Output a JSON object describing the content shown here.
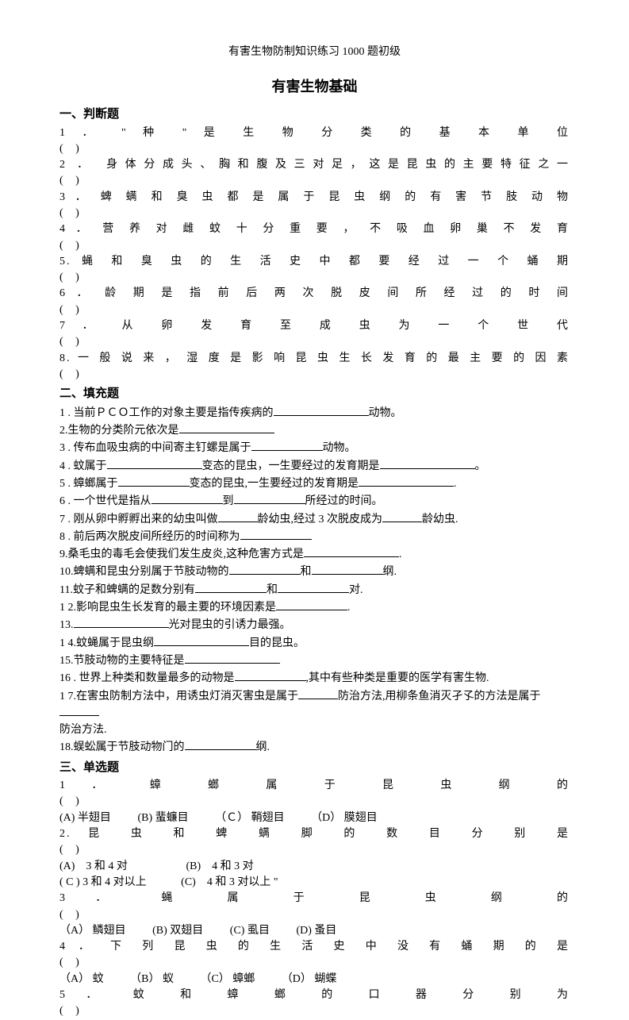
{
  "header": "有害生物防制知识练习 1000 题初级",
  "title": "有害生物基础",
  "sections": {
    "s1": {
      "heading": "一、判断题",
      "q1": "1 ． \" 种 \" 是 生 物 分 类 的 基 本 单 位",
      "q2": "2 ． 身体分成头、胸和腹及三对足，这是昆虫的主要特征之一",
      "q3": "3 ． 蜱 螨 和 臭 虫 都 是 属 于 昆 虫 纲 的 有 害 节 肢 动 物",
      "q4": "4 ． 营 养 对 雌 蚊 十 分 重 要 ， 不 吸 血 卵 巢 不 发 育",
      "q5": "5. 蝇 和 臭 虫 的 生 活 史 中 都 要 经 过 一 个 蛹 期",
      "q6": "6 ． 龄 期 是 指 前 后 两 次 脱 皮 间 所 经 过 的 时 间",
      "q7": "7 ． 从 卵 发 育 至 成 虫 为 一 个 世 代",
      "q8": "8. 一 般 说 来 ， 湿 度 是 影 响 昆 虫 生 长 发 育 的 最 主 要 的 因 素",
      "paren": "(    )"
    },
    "s2": {
      "heading": "二、填充题",
      "q1a": "1 . 当前ＰＣＯ工作的对象主要是指传疾病的",
      "q1b": "动物。",
      "q2a": "2.生物的分类阶元依次是",
      "q3a": "3 . 传布血吸虫病的中间寄主钉螺是属于",
      "q3b": "动物。",
      "q4a": "4 . 蚊属于",
      "q4b": "变态的昆虫，一生要经过的发育期是",
      "q4c": "。",
      "q5a": "5 . 蟑螂属于",
      "q5b": "变态的昆虫,一生要经过的发育期是",
      "q5c": ".",
      "q6a": "6 . 一个世代是指从",
      "q6b": "到",
      "q6c": "所经过的时间。",
      "q7a": "7 . 刚从卵中孵孵出来的幼虫叫做",
      "q7b": "龄幼虫,经过 3 次脱皮成为",
      "q7c": "龄幼虫.",
      "q8a": "8 . 前后两次脱皮间所经历的时间称为",
      "q9a": "9.桑毛虫的毒毛会使我们发生皮炎,这种危害方式是",
      "q9b": ".",
      "q10a": "10.蜱螨和昆虫分别属于节肢动物的",
      "q10b": "和",
      "q10c": "纲.",
      "q11a": "11.蚊子和蜱螨的足数分别有",
      "q11b": "和",
      "q11c": "对.",
      "q12a": "1 2.影响昆虫生长发育的最主要的环境因素是",
      "q12b": ".",
      "q13a": "13.",
      "q13b": "光对昆虫的引诱力最强。",
      "q14a": "1 4.蚊蝇属于昆虫纲",
      "q14b": "目的昆虫。",
      "q15a": "15.节肢动物的主要特征是",
      "q16a": "16 . 世界上种类和数量最多的动物是",
      "q16b": ",其中有些种类是重要的医学有害生物.",
      "q17a": "1 7.在害虫防制方法中，用诱虫灯消灭害虫是属于",
      "q17b": "防治方法,用柳条鱼消灭孑孓的方法是属于",
      "q17c": "防治方法.",
      "q18a": "18.蜈蚣属于节肢动物门的",
      "q18b": "纲."
    },
    "s3": {
      "heading": "三、单选题",
      "q1": "1 ． 蟑 螂 属 于 昆 虫 纲 的",
      "q1opts": {
        "a": "(A) 半翅目",
        "b": "(B) 蜚蠊目",
        "c": "（Ｃ） 鞘翅目",
        "d": "（D） 膜翅目"
      },
      "q2": "2. 昆 虫 和 蜱 螨 脚 的 数 目 分 别 是",
      "q2opts": {
        "a": "(A)　3 和 4 对",
        "b": "(B)　4 和 3 对",
        "c": "( C ) 3 和 4 对以上",
        "d": "(C)　4 和 3 对以上 \""
      },
      "q3": "3 ． 蝇 属 于 昆 虫 纲 的",
      "q3opts": {
        "a": "（A） 鳞翅目",
        "b": "(B)  双翅目",
        "c": "(C)  虱目",
        "d": "(D) 蚤目"
      },
      "q4": "4 ． 下 列 昆 虫 的 生 活 史 中 没 有 蛹 期 的 是",
      "q4opts": {
        "a": "（A） 蚊",
        "b": "（B） 蚁",
        "c": "（C） 蟑螂",
        "d": "（D） 蝴蝶"
      },
      "q5": "5 ． 蚊 和 蟑 螂 的 口 器 分 别 为",
      "paren": "(    )"
    }
  }
}
